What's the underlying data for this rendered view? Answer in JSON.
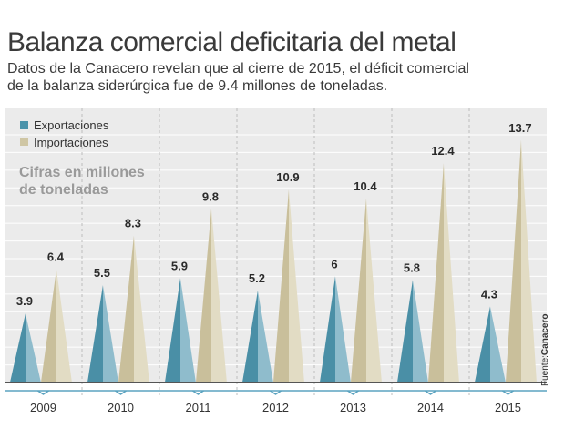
{
  "header": {
    "title": "Balanza comercial deficitaria del metal",
    "subtitle_line1": "Datos de la Canacero revelan que al cierre de 2015, el déficit comercial",
    "subtitle_line2": "de la balanza siderúrgica fue de 9.4 millones de toneladas."
  },
  "source": {
    "label": "Fuente:",
    "name": "Canacero"
  },
  "colors": {
    "exports": "#4b93aa",
    "imports": "#cfc6a4",
    "panel_bg": "#ebebeb",
    "axis": "#5ba3c0",
    "note_text": "#9a9a9a"
  },
  "chart_data": {
    "type": "bar",
    "categories": [
      "2009",
      "2010",
      "2011",
      "2012",
      "2013",
      "2014",
      "2015"
    ],
    "series": [
      {
        "name": "Exportaciones",
        "values": [
          3.9,
          5.5,
          5.9,
          5.2,
          6,
          5.8,
          4.3
        ]
      },
      {
        "name": "Importaciones",
        "values": [
          6.4,
          8.3,
          9.8,
          10.9,
          10.4,
          12.4,
          13.7
        ]
      }
    ],
    "value_labels": {
      "exports": [
        "3.9",
        "5.5",
        "5.9",
        "5.2",
        "6",
        "5.8",
        "4.3"
      ],
      "imports": [
        "6.4",
        "8.3",
        "9.8",
        "10.9",
        "10.4",
        "12.4",
        "13.7"
      ]
    },
    "note_line1": "Cifras en millones",
    "note_line2": "de toneladas",
    "ylim": [
      0,
      15
    ],
    "legend_position": "top-left",
    "grid": true
  }
}
